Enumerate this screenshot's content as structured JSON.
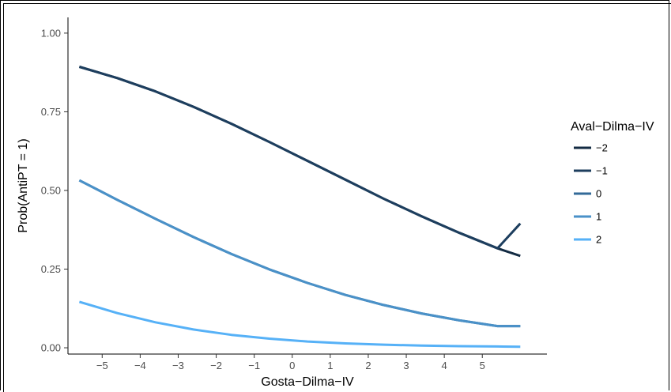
{
  "chart_data": {
    "type": "line",
    "title": "",
    "xlabel": "Gosta−Dilma−IV",
    "ylabel": "Prob(AntiPT = 1)",
    "xlim": [
      -5.9,
      6.7
    ],
    "ylim": [
      -0.02,
      1.05
    ],
    "x_ticks": [
      -5,
      -4,
      -3,
      -2,
      -1,
      0,
      1,
      2,
      3,
      4,
      5
    ],
    "x_tick_labels": [
      "−5",
      "−4",
      "−3",
      "−2",
      "−1",
      "0",
      "1",
      "2",
      "3",
      "4",
      "5"
    ],
    "y_ticks": [
      0,
      0.25,
      0.5,
      0.75,
      1
    ],
    "y_tick_labels": [
      "0.00",
      "0.25",
      "0.50",
      "0.75",
      "1.00"
    ],
    "grid": false,
    "legend": {
      "title": "Aval−Dilma−IV",
      "position": "right",
      "entries": [
        "−2",
        "−1",
        "0",
        "1",
        "2"
      ]
    },
    "x": [
      -5.6,
      -4.6,
      -3.6,
      -2.6,
      -1.6,
      -0.6,
      0.4,
      1.4,
      2.4,
      3.4,
      4.4,
      5.4,
      6.0
    ],
    "series": [
      {
        "name": "−2",
        "color": "#132b43",
        "values": [
          0.893,
          0.857,
          0.815,
          0.766,
          0.712,
          0.654,
          0.594,
          0.534,
          0.474,
          0.418,
          0.365,
          0.316,
          0.292
        ]
      },
      {
        "name": "−1",
        "color": "#1d3e5e",
        "values": [
          0.893,
          0.857,
          0.815,
          0.766,
          0.712,
          0.654,
          0.594,
          0.534,
          0.474,
          0.418,
          0.365,
          0.316,
          0.395
        ]
      },
      {
        "name": "0",
        "color": "#336a98",
        "values": [
          0.532,
          0.47,
          0.41,
          0.352,
          0.298,
          0.249,
          0.206,
          0.168,
          0.136,
          0.109,
          0.087,
          0.069,
          0.069
        ]
      },
      {
        "name": "1",
        "color": "#4a91c8",
        "values": [
          0.532,
          0.47,
          0.41,
          0.352,
          0.298,
          0.249,
          0.206,
          0.168,
          0.136,
          0.109,
          0.087,
          0.069,
          0.069
        ]
      },
      {
        "name": "2",
        "color": "#56b1f7",
        "values": [
          0.146,
          0.11,
          0.081,
          0.058,
          0.041,
          0.029,
          0.02,
          0.014,
          0.01,
          0.007,
          0.005,
          0.004,
          0.003
        ]
      }
    ]
  }
}
